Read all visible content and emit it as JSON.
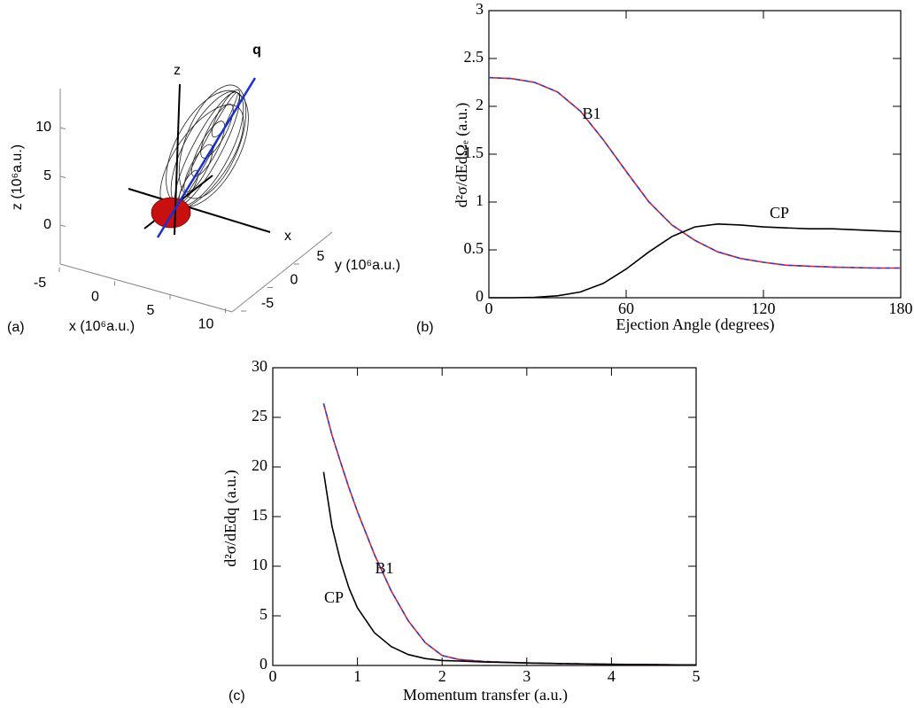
{
  "chart_data": [
    {
      "type": "surface3d",
      "panel_label": "(a)",
      "xlabel": "x (10⁶a.u.)",
      "ylabel": "y (10⁶a.u.)",
      "zlabel": "z (10⁶a.u.)",
      "axis_names": [
        "z",
        "x",
        "q"
      ],
      "xticks": [
        -5,
        0,
        5,
        10
      ],
      "yticks": [
        -5,
        0,
        5
      ],
      "zticks": [
        0,
        5,
        10
      ]
    },
    {
      "type": "line",
      "panel_label": "(b)",
      "xlabel": "Ejection Angle (degrees)",
      "ylabel": "d²σ/dEdΩₑ (a.u.)",
      "x": [
        0,
        10,
        20,
        30,
        40,
        50,
        60,
        70,
        80,
        90,
        100,
        110,
        120,
        130,
        140,
        150,
        160,
        170,
        180
      ],
      "series": [
        {
          "name": "B1",
          "color": "#e0202a",
          "dash_color": "#2a3fd6",
          "values": [
            2.3,
            2.29,
            2.25,
            2.15,
            1.95,
            1.65,
            1.32,
            1.0,
            0.76,
            0.6,
            0.48,
            0.41,
            0.37,
            0.34,
            0.33,
            0.32,
            0.315,
            0.31,
            0.31
          ]
        },
        {
          "name": "CP",
          "color": "#000000",
          "values": [
            0,
            0,
            0.005,
            0.02,
            0.06,
            0.15,
            0.3,
            0.48,
            0.64,
            0.74,
            0.77,
            0.76,
            0.74,
            0.73,
            0.72,
            0.72,
            0.71,
            0.7,
            0.69
          ]
        }
      ],
      "xlim": [
        0,
        180
      ],
      "ylim": [
        0,
        3
      ],
      "xticks": [
        0,
        60,
        120,
        180
      ],
      "yticks": [
        0,
        0.5,
        1,
        1.5,
        2,
        2.5,
        3
      ]
    },
    {
      "type": "line",
      "panel_label": "(c)",
      "xlabel": "Momentum transfer (a.u.)",
      "ylabel": "d²σ/dEdq (a.u.)",
      "x": [
        0.6,
        0.7,
        0.8,
        0.9,
        1.0,
        1.2,
        1.4,
        1.6,
        1.8,
        2.0,
        2.2,
        2.5,
        3,
        3.5,
        4,
        4.5,
        5
      ],
      "series": [
        {
          "name": "B1",
          "color": "#e0202a",
          "dash_color": "#2a3fd6",
          "values": [
            26.4,
            23.2,
            20.5,
            17.9,
            15.5,
            11.2,
            7.5,
            4.5,
            2.3,
            1.0,
            0.6,
            0.4,
            0.25,
            0.18,
            0.12,
            0.08,
            0.05
          ]
        },
        {
          "name": "CP",
          "color": "#000000",
          "values": [
            19.5,
            14,
            10.5,
            7.8,
            5.8,
            3.3,
            1.9,
            1.1,
            0.7,
            0.5,
            0.45,
            0.35,
            0.25,
            0.18,
            0.12,
            0.08,
            0.05
          ]
        }
      ],
      "xlim": [
        0,
        5
      ],
      "ylim": [
        0,
        30
      ],
      "xticks": [
        0,
        1,
        2,
        3,
        4,
        5
      ],
      "yticks": [
        0,
        5,
        10,
        15,
        20,
        25,
        30
      ]
    }
  ]
}
